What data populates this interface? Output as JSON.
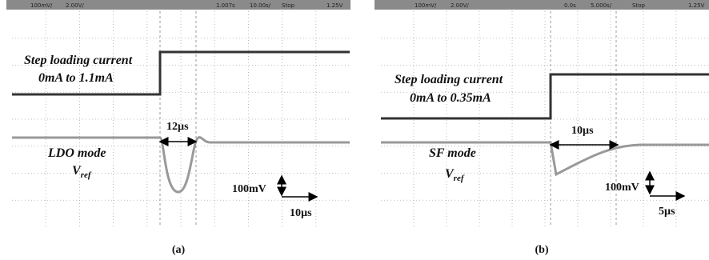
{
  "panels": [
    {
      "status": [
        "100mV/",
        "2.00V/",
        "1.007s",
        "10.00s/",
        "Stop",
        "1.25V"
      ],
      "current_label": "Step loading current",
      "current_range": "0mA to 1.1mA",
      "time_label": "12µs",
      "mode": "LDO mode",
      "vref_main": "V",
      "vref_sub": "ref",
      "v_scale": "100mV",
      "t_scale": "10µs",
      "caption": "(a)"
    },
    {
      "status": [
        "100mV/",
        "2.00V/",
        "0.0s",
        "5.000s/",
        "Stop",
        "1.25V"
      ],
      "current_label": "Step loading current",
      "current_range": "0mA to 0.35mA",
      "time_label": "10µs",
      "mode": "SF mode",
      "vref_main": "V",
      "vref_sub": "ref",
      "v_scale": "100mV",
      "t_scale": "5µs",
      "caption": "(b)"
    }
  ]
}
